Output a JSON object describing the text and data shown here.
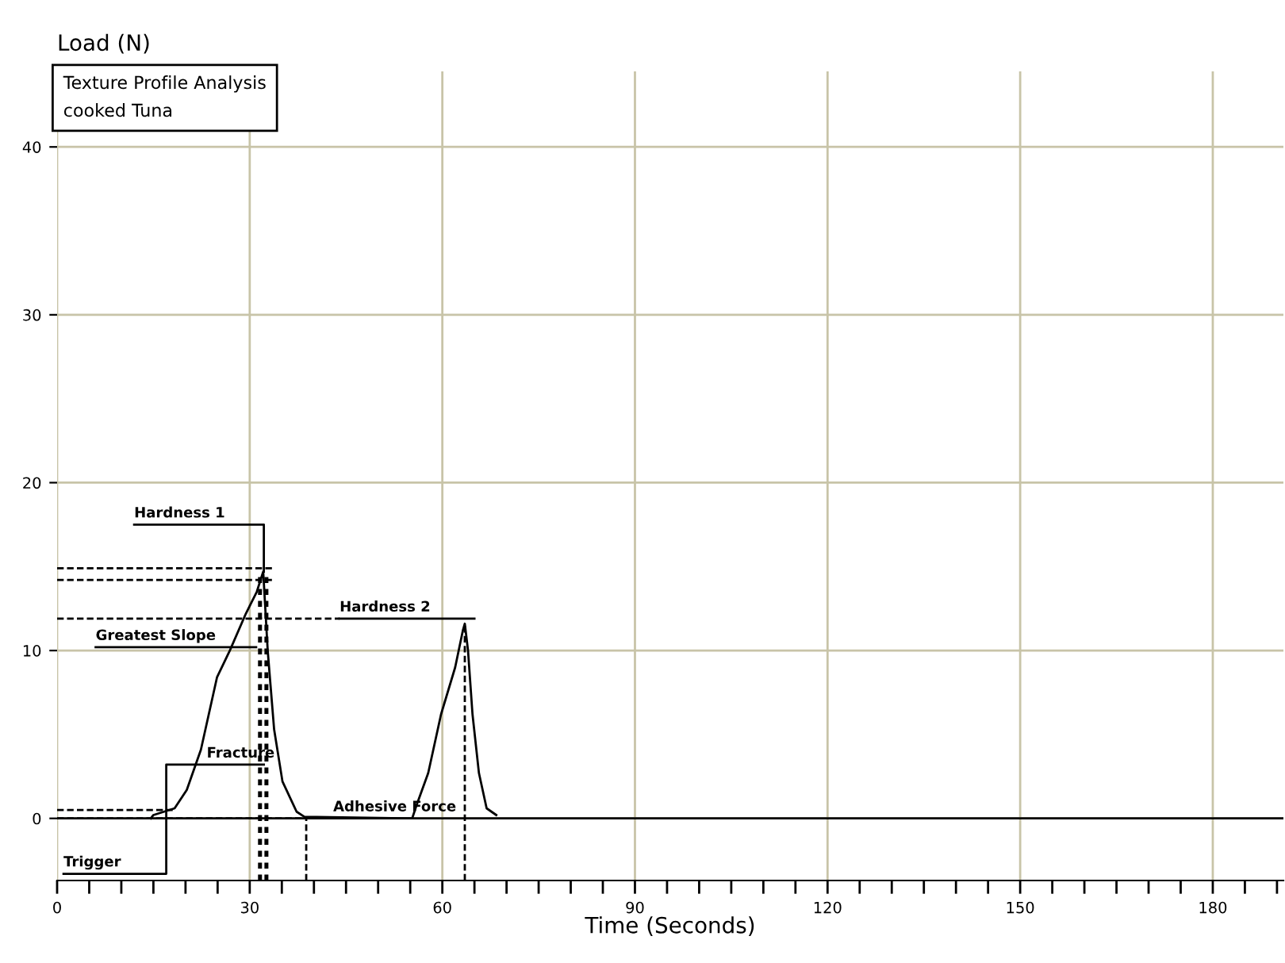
{
  "chart_data": {
    "type": "line",
    "title": "Texture Profile Analysis\ncooked Tuna",
    "xlabel": "Time (Seconds)",
    "ylabel": "Load (N)",
    "xlim": [
      0,
      191
    ],
    "ylim": [
      -3.7,
      44.5
    ],
    "xticks": [
      0,
      30,
      60,
      90,
      120,
      150,
      180
    ],
    "yticks": [
      0,
      10,
      20,
      30,
      40
    ],
    "grid": true,
    "marker": "none",
    "series": [
      {
        "color": "#000000",
        "line_style": "solid",
        "x": [
          14.6,
          15,
          18.3,
          20.2,
          22.4,
          24.9,
          26.9,
          29.4,
          31.1,
          32.1,
          32.8,
          33.8,
          35.1,
          37.3,
          38.5,
          55.3,
          56,
          57.8,
          59.8,
          62,
          63.2,
          63.5,
          64,
          64.7,
          65.7,
          66.9,
          68.4
        ],
        "values": [
          0,
          0.2,
          0.6,
          1.7,
          4.1,
          8.4,
          10,
          12.2,
          13.5,
          14.7,
          10,
          5.3,
          2.2,
          0.4,
          0.1,
          0,
          0.8,
          2.7,
          6.2,
          9,
          11.2,
          11.6,
          10,
          6.2,
          2.7,
          0.6,
          0.2
        ]
      },
      {
        "color": "#000000",
        "line_style": "dashed",
        "x": [
          0,
          33.5
        ],
        "values": [
          14.9,
          14.9
        ]
      },
      {
        "color": "#000000",
        "line_style": "dashed",
        "x": [
          0,
          33.5
        ],
        "values": [
          14.2,
          14.2
        ]
      },
      {
        "color": "#000000",
        "line_style": "dashed",
        "x": [
          0,
          44
        ],
        "values": [
          11.9,
          11.9
        ]
      },
      {
        "color": "#000000",
        "line_style": "dashed",
        "x": [
          0,
          18
        ],
        "values": [
          0.5,
          0.5
        ]
      },
      {
        "color": "#000000",
        "line_style": "dashed",
        "x": [
          0,
          39
        ],
        "values": [
          0,
          0
        ]
      },
      {
        "color": "#000000",
        "line_style": "dotted",
        "x": [
          31.6,
          31.6
        ],
        "values": [
          -3.7,
          14.5
        ]
      },
      {
        "color": "#000000",
        "line_style": "dotted",
        "x": [
          32.6,
          32.6
        ],
        "values": [
          -3.7,
          14.5
        ]
      },
      {
        "color": "#000000",
        "line_style": "dashed",
        "x": [
          38.8,
          38.8
        ],
        "values": [
          -3.7,
          0
        ]
      },
      {
        "color": "#000000",
        "line_style": "dashed",
        "x": [
          63.5,
          63.5
        ],
        "values": [
          -3.7,
          11.6
        ]
      },
      {
        "color": "#000000",
        "line_style": "solid",
        "x": [
          12,
          32.2,
          32.2
        ],
        "values": [
          17.5,
          17.5,
          14.7
        ]
      },
      {
        "color": "#000000",
        "line_style": "solid",
        "x": [
          44,
          65
        ],
        "values": [
          11.9,
          11.9
        ]
      },
      {
        "color": "#000000",
        "line_style": "solid",
        "x": [
          6,
          31
        ],
        "values": [
          10.2,
          10.2
        ]
      },
      {
        "color": "#000000",
        "line_style": "solid",
        "x": [
          1,
          17,
          17,
          32.2
        ],
        "values": [
          -3.3,
          -3.3,
          3.2,
          3.2
        ]
      }
    ],
    "annotations": [
      {
        "text": "Hardness 1",
        "x": 12,
        "y": 17.5
      },
      {
        "text": "Hardness 2",
        "x": 44,
        "y": 11.9
      },
      {
        "text": "Greatest Slope",
        "x": 6,
        "y": 10.2
      },
      {
        "text": "Fracture",
        "x": 23.3,
        "y": 3.2
      },
      {
        "text": "Adhesive Force",
        "x": 43,
        "y": 0
      },
      {
        "text": "Trigger",
        "x": 1,
        "y": -3.3
      }
    ],
    "ref_lines": [
      {
        "axis": "y",
        "value": 0,
        "label": null,
        "color": "#000000",
        "line_style": "solid"
      }
    ]
  }
}
